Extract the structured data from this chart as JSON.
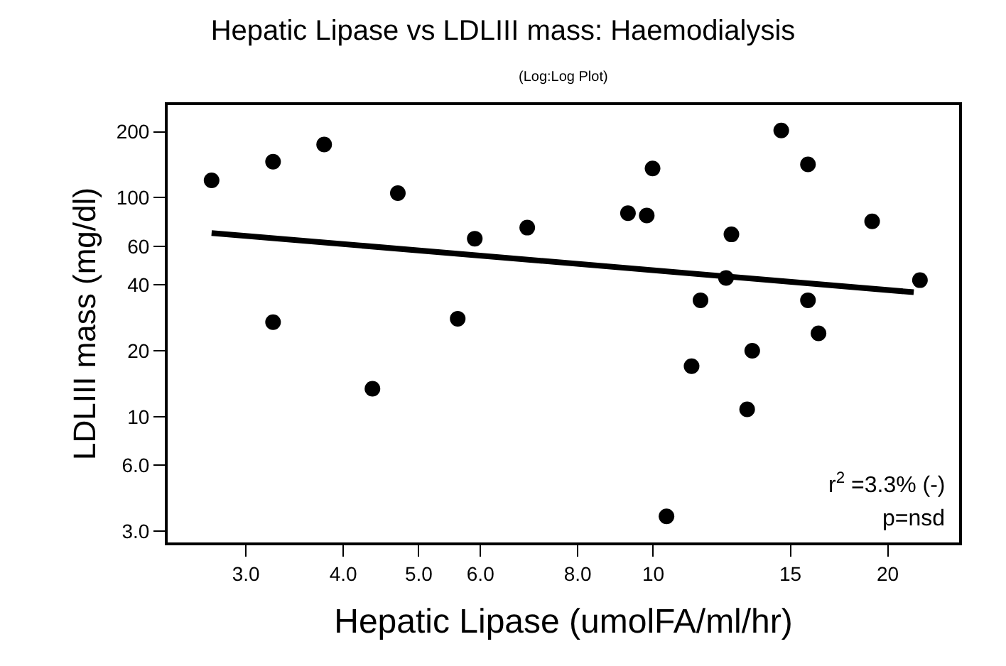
{
  "chart_data": {
    "type": "scatter",
    "title": "Hepatic Lipase vs LDLIII mass: Haemodialysis",
    "subtitle": "(Log:Log Plot)",
    "xlabel": "Hepatic Lipase (umolFA/ml/hr)",
    "ylabel": "LDLIII mass (mg/dl)",
    "log": "xy",
    "marker": "circle",
    "xlim": [
      2.38,
      24.7
    ],
    "ylim": [
      2.66,
      265
    ],
    "xticks": [
      {
        "value": 3,
        "label": "3.0"
      },
      {
        "value": 4,
        "label": "4.0"
      },
      {
        "value": 5,
        "label": "5.0"
      },
      {
        "value": 6,
        "label": "6.0"
      },
      {
        "value": 8,
        "label": "8.0"
      },
      10,
      15,
      20
    ],
    "yticks": [
      {
        "value": 3,
        "label": "3.0"
      },
      {
        "value": 6,
        "label": "6.0"
      },
      10,
      20,
      40,
      60,
      100,
      200
    ],
    "series": [
      {
        "color": "#000000",
        "x": [
          2.71,
          3.25,
          3.78,
          4.7,
          3.25,
          4.36,
          5.61,
          5.9,
          6.89,
          9.28,
          9.81,
          9.98,
          10.4,
          11.2,
          11.5,
          12.4,
          12.6,
          13.2,
          13.4,
          14.6,
          15.8,
          15.8,
          16.3,
          19.1,
          22.0
        ],
        "values": [
          120,
          146,
          175,
          105,
          27,
          13.4,
          28,
          65,
          73,
          85,
          83,
          136,
          3.5,
          17,
          34,
          43,
          68,
          10.8,
          20,
          203,
          142,
          34,
          24,
          78,
          42
        ]
      },
      {
        "type": "line",
        "color": "#000000",
        "line_style": "solid",
        "marker": "none",
        "x": [
          2.71,
          21.6
        ],
        "values": [
          69,
          37
        ]
      }
    ],
    "annotations": [
      "r$^{2}$ =3.3% (-)",
      "p=nsd"
    ]
  }
}
